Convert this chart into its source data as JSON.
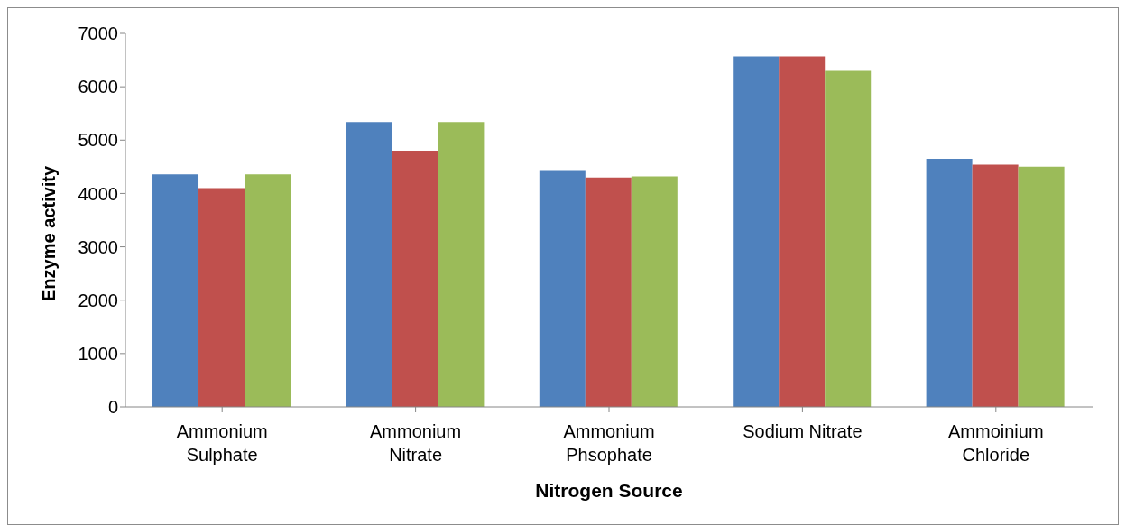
{
  "chart_data": {
    "type": "bar",
    "xlabel": "Nitrogen Source",
    "ylabel": "Enzyme activity",
    "categories": [
      "Ammonium Sulphate",
      "Ammonium Nitrate",
      "Ammonium Phsophate",
      "Sodium Nitrate",
      "Ammoinium Chloride"
    ],
    "series": [
      {
        "color": "#4f81bd",
        "values": [
          4360,
          5340,
          4440,
          6570,
          4650
        ]
      },
      {
        "color": "#c0504d",
        "values": [
          4100,
          4800,
          4300,
          6570,
          4540
        ]
      },
      {
        "color": "#9bbb59",
        "values": [
          4360,
          5340,
          4320,
          6300,
          4500
        ]
      }
    ],
    "ylim": [
      0,
      7000
    ],
    "yticks": [
      0,
      1000,
      2000,
      3000,
      4000,
      5000,
      6000,
      7000
    ],
    "grid": false,
    "legend": false
  }
}
